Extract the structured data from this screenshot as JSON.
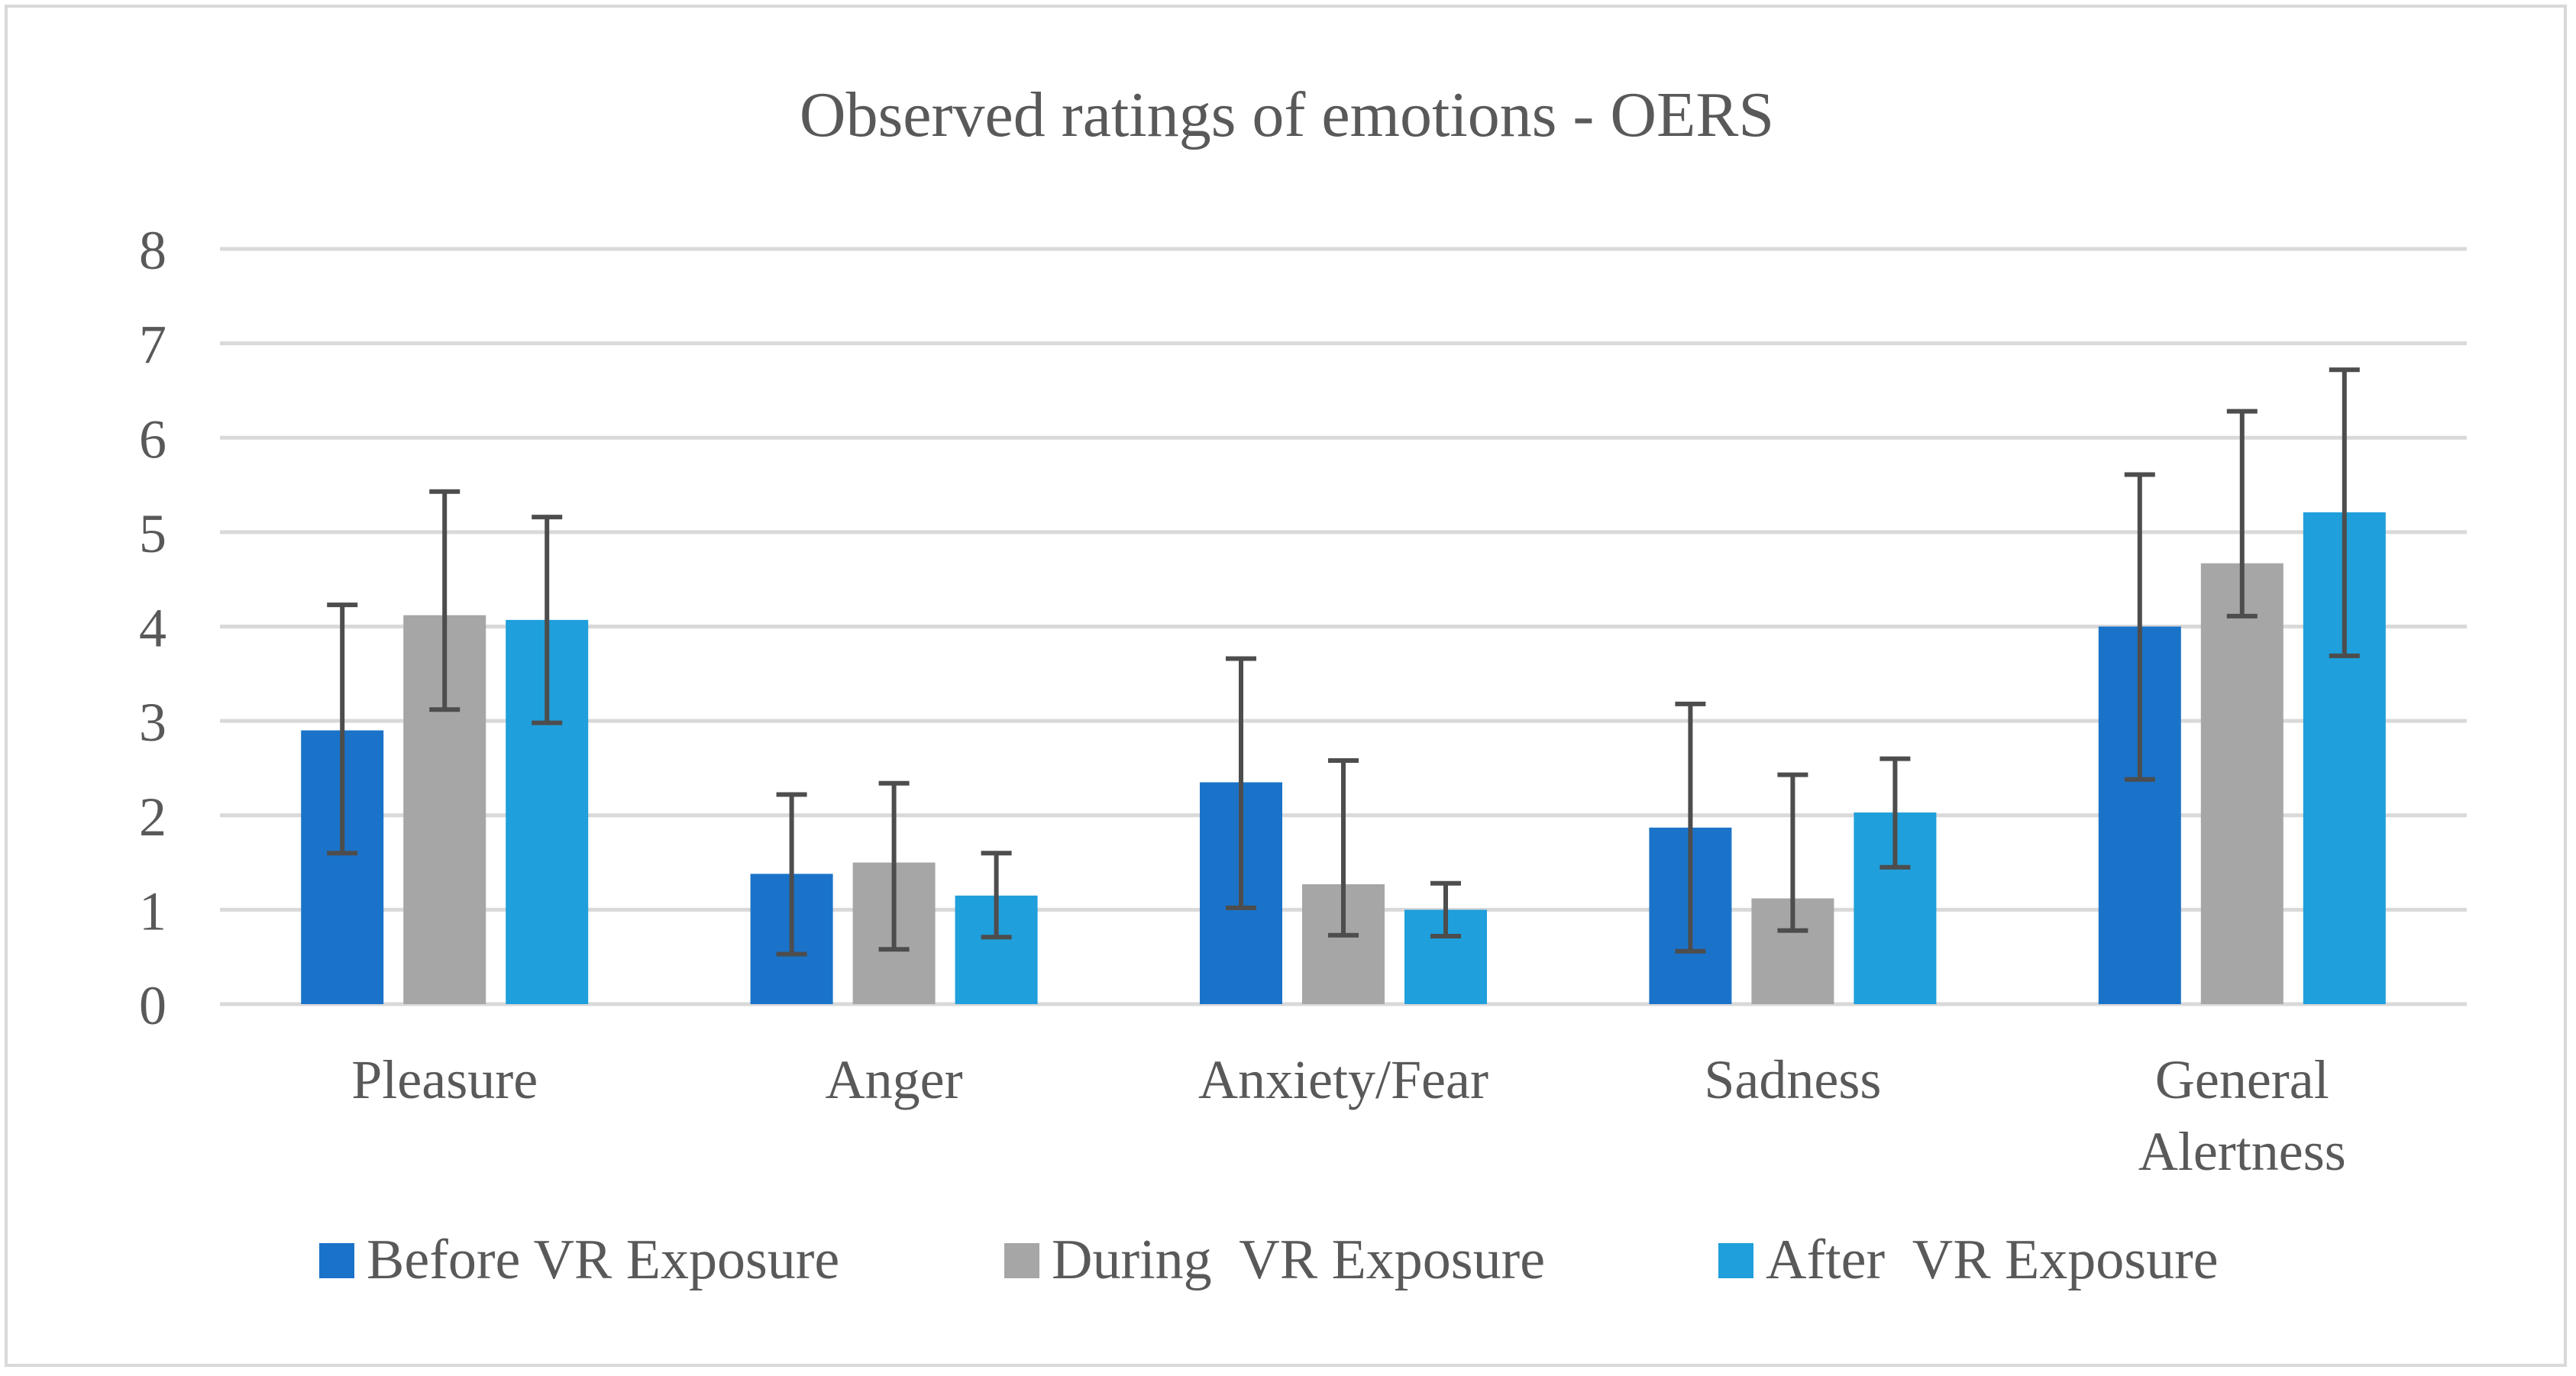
{
  "chart_data": {
    "type": "bar",
    "title": "Observed ratings of emotions - OERS",
    "xlabel": "",
    "ylabel": "",
    "ylim": [
      0,
      8
    ],
    "yticks": [
      "0",
      "1",
      "2",
      "3",
      "4",
      "5",
      "6",
      "7",
      "8"
    ],
    "grid": true,
    "legend_position": "bottom",
    "error_bars": true,
    "categories": [
      "Pleasure",
      "Anger",
      "Anxiety/Fear",
      "Sadness",
      "General Alertness"
    ],
    "category_lines": [
      [
        "Pleasure"
      ],
      [
        "Anger"
      ],
      [
        "Anxiety/Fear"
      ],
      [
        "Sadness"
      ],
      [
        "General",
        "Alertness"
      ]
    ],
    "series": [
      {
        "name": "Before VR Exposure",
        "color": "#1a73c9",
        "values": [
          2.9,
          1.38,
          2.35,
          1.87,
          4.0
        ],
        "err_low": [
          1.6,
          0.53,
          1.02,
          0.56,
          2.38
        ],
        "err_high": [
          4.23,
          2.22,
          3.66,
          3.18,
          5.61
        ]
      },
      {
        "name": "During  VR Exposure",
        "color": "#a6a6a6",
        "values": [
          4.12,
          1.5,
          1.27,
          1.12,
          4.67
        ],
        "err_low": [
          3.12,
          0.58,
          0.73,
          0.78,
          4.11
        ],
        "err_high": [
          5.43,
          2.34,
          2.58,
          2.43,
          6.28
        ]
      },
      {
        "name": "After  VR Exposure",
        "color": "#1f9fdb",
        "values": [
          4.07,
          1.15,
          1.0,
          2.03,
          5.21
        ],
        "err_low": [
          2.98,
          0.71,
          0.72,
          1.45,
          3.69
        ],
        "err_high": [
          5.16,
          1.6,
          1.28,
          2.6,
          6.72
        ]
      }
    ]
  }
}
